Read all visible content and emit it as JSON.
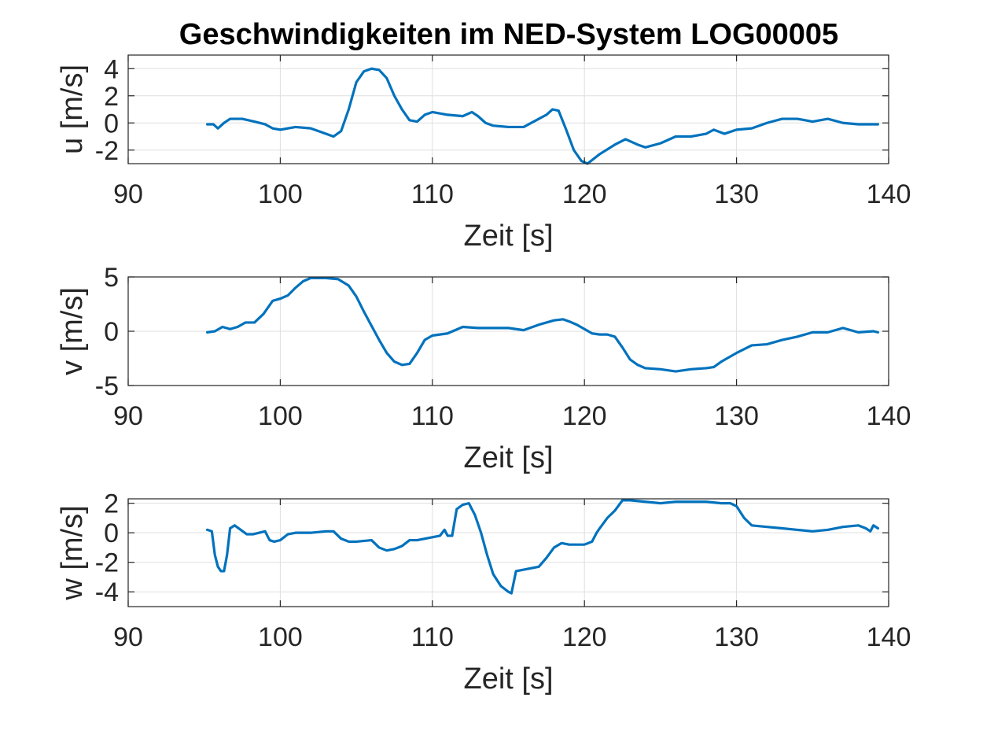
{
  "figure_title": "Geschwindigkeiten im NED-System LOG00005",
  "colors": {
    "series": "#0072bd",
    "axis": "#262626",
    "grid": "#dfdfdf"
  },
  "chart_data": [
    {
      "type": "line",
      "title": "Geschwindigkeiten im NED-System LOG00005",
      "xlabel": "Zeit [s]",
      "ylabel": "u [m/s]",
      "xlim": [
        90,
        140
      ],
      "ylim": [
        -3,
        5
      ],
      "xticks": [
        90,
        100,
        110,
        120,
        130,
        140
      ],
      "yticks": [
        -2,
        0,
        2,
        4
      ],
      "grid": true,
      "series": [
        {
          "x": [
            95.2,
            95.6,
            95.9,
            96.3,
            96.7,
            97.5,
            98.3,
            99,
            99.5,
            100,
            101,
            102,
            103,
            103.5,
            104,
            104.5,
            105,
            105.5,
            106,
            106.5,
            107,
            107.5,
            108,
            108.5,
            109,
            109.5,
            110,
            110.5,
            111,
            112,
            112.6,
            113,
            113.5,
            114,
            115,
            116,
            117,
            117.5,
            117.9,
            118.3,
            118.8,
            119.3,
            119.8,
            120.2,
            121,
            122,
            122.7,
            123.5,
            124,
            125,
            126,
            127,
            128,
            128.5,
            129.2,
            130,
            131,
            132,
            133,
            134,
            135,
            136,
            137,
            138,
            139,
            139.3
          ],
          "y": [
            -0.1,
            -0.1,
            -0.4,
            0,
            0.3,
            0.3,
            0.1,
            -0.1,
            -0.4,
            -0.5,
            -0.3,
            -0.4,
            -0.8,
            -1.0,
            -0.6,
            1.0,
            3.0,
            3.8,
            4.0,
            3.9,
            3.3,
            2.0,
            1.0,
            0.2,
            0.1,
            0.6,
            0.8,
            0.7,
            0.6,
            0.5,
            0.8,
            0.5,
            0.0,
            -0.2,
            -0.3,
            -0.3,
            0.3,
            0.6,
            1.0,
            0.9,
            -0.5,
            -2.0,
            -2.8,
            -3.0,
            -2.3,
            -1.6,
            -1.2,
            -1.6,
            -1.8,
            -1.5,
            -1.0,
            -1.0,
            -0.8,
            -0.5,
            -0.8,
            -0.5,
            -0.4,
            0.0,
            0.3,
            0.3,
            0.1,
            0.3,
            0.0,
            -0.1,
            -0.1,
            -0.1
          ]
        }
      ]
    },
    {
      "type": "line",
      "xlabel": "Zeit [s]",
      "ylabel": "v [m/s]",
      "xlim": [
        90,
        140
      ],
      "ylim": [
        -5,
        5
      ],
      "xticks": [
        90,
        100,
        110,
        120,
        130,
        140
      ],
      "yticks": [
        -5,
        0,
        5
      ],
      "grid": true,
      "series": [
        {
          "x": [
            95.2,
            95.7,
            96.2,
            96.7,
            97.2,
            97.7,
            98.3,
            98.9,
            99.5,
            100,
            100.5,
            101,
            101.5,
            102,
            103,
            103.8,
            104.5,
            105,
            105.5,
            106,
            106.5,
            107,
            107.5,
            108,
            108.5,
            109,
            109.5,
            110,
            111,
            112,
            113,
            114,
            115,
            116,
            117,
            118,
            118.6,
            119,
            119.5,
            120,
            120.5,
            121,
            121.5,
            122,
            122.5,
            123,
            123.5,
            124,
            125,
            126,
            127,
            128,
            128.5,
            129,
            129.5,
            130,
            131,
            132,
            133,
            134,
            135,
            136,
            137,
            138,
            139,
            139.3
          ],
          "y": [
            -0.1,
            0.0,
            0.4,
            0.2,
            0.4,
            0.8,
            0.8,
            1.6,
            2.8,
            3.0,
            3.3,
            4.0,
            4.6,
            4.9,
            4.9,
            4.8,
            4.2,
            3.2,
            1.8,
            0.5,
            -0.8,
            -2.0,
            -2.8,
            -3.1,
            -3.0,
            -2.0,
            -0.8,
            -0.4,
            -0.2,
            0.4,
            0.3,
            0.3,
            0.3,
            0.1,
            0.6,
            1.0,
            1.1,
            0.9,
            0.6,
            0.2,
            -0.2,
            -0.3,
            -0.3,
            -0.5,
            -1.5,
            -2.6,
            -3.1,
            -3.4,
            -3.5,
            -3.7,
            -3.5,
            -3.4,
            -3.3,
            -2.8,
            -2.4,
            -2.0,
            -1.3,
            -1.2,
            -0.8,
            -0.5,
            -0.1,
            -0.1,
            0.3,
            -0.1,
            0.0,
            -0.1
          ]
        }
      ]
    },
    {
      "type": "line",
      "xlabel": "Zeit [s]",
      "ylabel": "w [m/s]",
      "xlim": [
        90,
        140
      ],
      "ylim": [
        -5,
        2.3
      ],
      "xticks": [
        90,
        100,
        110,
        120,
        130,
        140
      ],
      "yticks": [
        -4,
        -2,
        0,
        2
      ],
      "grid": true,
      "series": [
        {
          "x": [
            95.2,
            95.5,
            95.7,
            95.9,
            96.1,
            96.3,
            96.5,
            96.7,
            97,
            97.4,
            97.8,
            98.2,
            98.6,
            99,
            99.3,
            99.6,
            100,
            100.5,
            101,
            102,
            103,
            103.5,
            104,
            104.5,
            105,
            106,
            106.5,
            107,
            107.5,
            108,
            108.5,
            109,
            109.5,
            110,
            110.5,
            110.8,
            111,
            111.3,
            111.6,
            112,
            112.4,
            112.8,
            113.2,
            113.6,
            114,
            114.5,
            115,
            115.2,
            115.5,
            116,
            117,
            117.5,
            118,
            118.5,
            119,
            119.5,
            120,
            120.5,
            120.8,
            121,
            121.5,
            122,
            122.5,
            123,
            124,
            125,
            126,
            127,
            128,
            129,
            129.6,
            130,
            130.5,
            131,
            132,
            133,
            134,
            135,
            136,
            137,
            138,
            138.5,
            138.8,
            139,
            139.3
          ],
          "y": [
            0.2,
            0.1,
            -1.5,
            -2.3,
            -2.6,
            -2.6,
            -1.5,
            0.3,
            0.5,
            0.2,
            -0.1,
            -0.1,
            0.0,
            0.1,
            -0.5,
            -0.6,
            -0.5,
            -0.1,
            0.0,
            0.0,
            0.1,
            0.1,
            -0.4,
            -0.6,
            -0.6,
            -0.5,
            -1.0,
            -1.2,
            -1.1,
            -0.9,
            -0.5,
            -0.5,
            -0.4,
            -0.3,
            -0.2,
            0.2,
            -0.2,
            -0.2,
            1.6,
            1.9,
            2.0,
            1.2,
            0.0,
            -1.5,
            -2.8,
            -3.6,
            -4.0,
            -4.1,
            -2.6,
            -2.5,
            -2.3,
            -1.7,
            -1.0,
            -0.7,
            -0.8,
            -0.8,
            -0.8,
            -0.6,
            0.0,
            0.3,
            1.0,
            1.5,
            2.2,
            2.2,
            2.1,
            2.0,
            2.1,
            2.1,
            2.1,
            2.0,
            2.0,
            1.8,
            1.0,
            0.5,
            0.4,
            0.3,
            0.2,
            0.1,
            0.2,
            0.4,
            0.5,
            0.3,
            0.1,
            0.5,
            0.3
          ]
        }
      ]
    }
  ]
}
